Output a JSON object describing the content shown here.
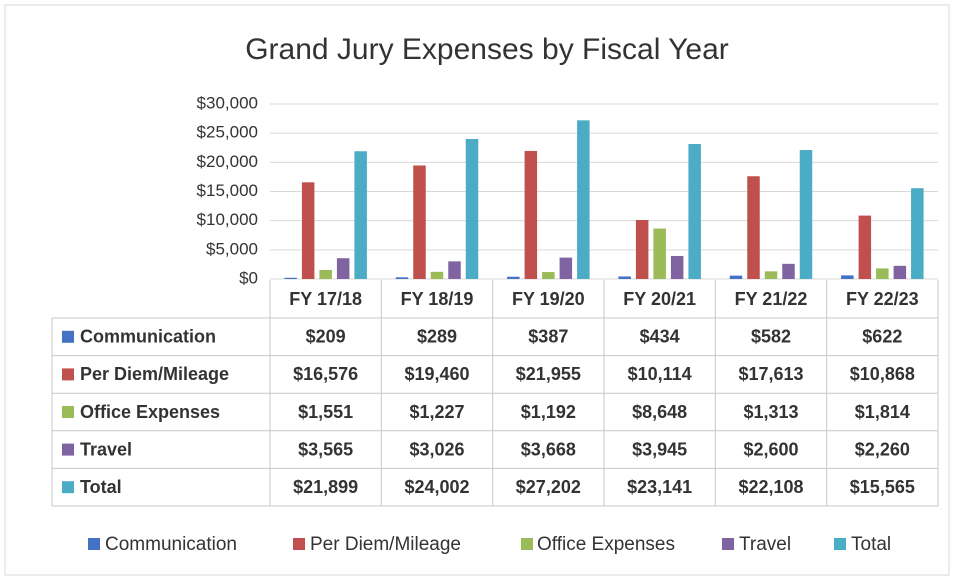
{
  "chart_data": {
    "type": "bar",
    "title": "Grand Jury Expenses by Fiscal Year",
    "categories": [
      "FY 17/18",
      "FY 18/19",
      "FY 19/20",
      "FY 20/21",
      "FY 21/22",
      "FY 22/23"
    ],
    "series": [
      {
        "name": "Communication",
        "color": "#4472c4",
        "values": [
          209,
          289,
          387,
          434,
          582,
          622
        ],
        "value_labels": [
          "$209",
          "$289",
          "$387",
          "$434",
          "$582",
          "$622"
        ]
      },
      {
        "name": "Per Diem/Mileage",
        "color": "#c0504d",
        "values": [
          16576,
          19460,
          21955,
          10114,
          17613,
          10868
        ],
        "value_labels": [
          "$16,576",
          "$19,460",
          "$21,955",
          "$10,114",
          "$17,613",
          "$10,868"
        ]
      },
      {
        "name": "Office Expenses",
        "color": "#9bbb59",
        "values": [
          1551,
          1227,
          1192,
          8648,
          1313,
          1814
        ],
        "value_labels": [
          "$1,551",
          "$1,227",
          "$1,192",
          "$8,648",
          "$1,313",
          "$1,814"
        ]
      },
      {
        "name": "Travel",
        "color": "#8064a2",
        "values": [
          3565,
          3026,
          3668,
          3945,
          2600,
          2260
        ],
        "value_labels": [
          "$3,565",
          "$3,026",
          "$3,668",
          "$3,945",
          "$2,600",
          "$2,260"
        ]
      },
      {
        "name": "Total",
        "color": "#4bacc6",
        "values": [
          21899,
          24002,
          27202,
          23141,
          22108,
          15565
        ],
        "value_labels": [
          "$21,899",
          "$24,002",
          "$27,202",
          "$23,141",
          "$22,108",
          "$15,565"
        ]
      }
    ],
    "ylim": [
      0,
      30000
    ],
    "yticks": [
      {
        "value": 0,
        "label": "$0"
      },
      {
        "value": 5000,
        "label": "$5,000"
      },
      {
        "value": 10000,
        "label": "$10,000"
      },
      {
        "value": 15000,
        "label": "$15,000"
      },
      {
        "value": 20000,
        "label": "$20,000"
      },
      {
        "value": 25000,
        "label": "$25,000"
      },
      {
        "value": 30000,
        "label": "$30,000"
      }
    ],
    "grid": true,
    "legend": "bottom"
  }
}
